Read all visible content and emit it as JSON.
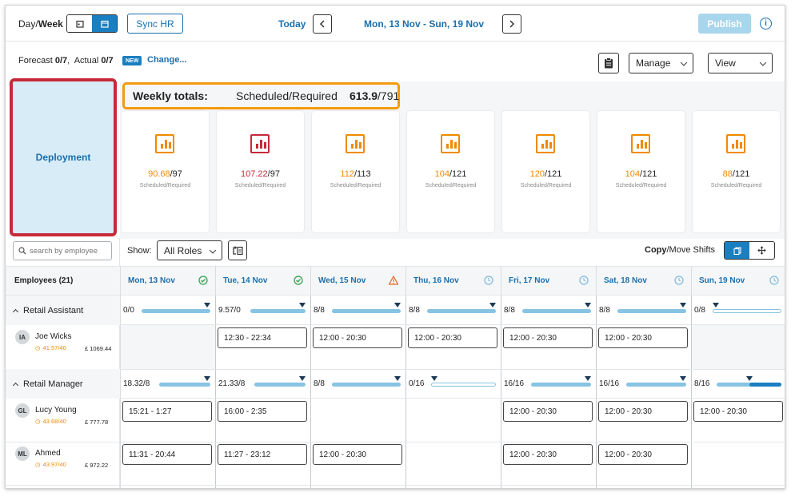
{
  "toolbar": {
    "mode_prefix": "Day/",
    "mode_bold": "Week",
    "sync_label": "Sync HR",
    "today_label": "Today",
    "date_range": "Mon, 13 Nov - Sun, 19 Nov",
    "publish_label": "Publish",
    "colors": {
      "accent": "#1a6fae",
      "publish_bg": "#a8d6ec"
    }
  },
  "forecast": {
    "forecast_label": "Forecast",
    "forecast_value": "0/7",
    "actual_label": "Actual",
    "actual_value": "0/7",
    "new_badge": "NEW",
    "change_link": "Change...",
    "manage_label": "Manage",
    "view_label": "View"
  },
  "deployment": {
    "label": "Deployment",
    "highlight_color": "#c62a3a"
  },
  "weekly_totals": {
    "label": "Weekly totals:",
    "metric_label": "Scheduled/Required",
    "scheduled": "613.9",
    "required": "/791",
    "highlight_color": "#f39a0f"
  },
  "day_cards": [
    {
      "scheduled": "90.68",
      "required": "/97",
      "sub": "Scheduled/Required",
      "color": "#f08a00"
    },
    {
      "scheduled": "107.22",
      "required": "/97",
      "sub": "Scheduled/Required",
      "color": "#c62a3a"
    },
    {
      "scheduled": "112",
      "required": "/113",
      "sub": "Scheduled/Required",
      "color": "#f08a00"
    },
    {
      "scheduled": "104",
      "required": "/121",
      "sub": "Scheduled/Required",
      "color": "#f08a00"
    },
    {
      "scheduled": "120",
      "required": "/121",
      "sub": "Scheduled/Required",
      "color": "#f08a00"
    },
    {
      "scheduled": "104",
      "required": "/121",
      "sub": "Scheduled/Required",
      "color": "#f08a00"
    },
    {
      "scheduled": "88",
      "required": "/121",
      "sub": "Scheduled/Required",
      "color": "#f08a00"
    }
  ],
  "filters": {
    "search_placeholder": "search by employee",
    "show_label": "Show:",
    "roles_value": "All Roles",
    "copy_bold": "Copy",
    "move_label": "/Move Shifts"
  },
  "employees_header": "Employees (21)",
  "days": [
    {
      "label": "Mon, 13 Nov",
      "status": "check"
    },
    {
      "label": "Tue, 14 Nov",
      "status": "check"
    },
    {
      "label": "Wed, 15 Nov",
      "status": "warning"
    },
    {
      "label": "Thu, 16 Nov",
      "status": "clock"
    },
    {
      "label": "Fri, 17 Nov",
      "status": "clock"
    },
    {
      "label": "Sat, 18 Nov",
      "status": "clock"
    },
    {
      "label": "Sun, 19 Nov",
      "status": "clock"
    }
  ],
  "roles": [
    {
      "name": "Retail Assistant",
      "coverage": [
        {
          "text": "0/0",
          "fill": 1.0
        },
        {
          "text": "9.57/0",
          "fill": 1.0
        },
        {
          "text": "8/8",
          "fill": 1.0
        },
        {
          "text": "8/8",
          "fill": 1.0
        },
        {
          "text": "8/8",
          "fill": 1.0
        },
        {
          "text": "8/8",
          "fill": 1.0
        },
        {
          "text": "0/8",
          "fill": 0.0
        }
      ],
      "employees": [
        {
          "initials": "IA",
          "name": "Joe Wicks",
          "hours": "41.57/40",
          "cost": "£ 1069.44",
          "shifts": [
            "",
            "12:30 - 22:34",
            "12:00 - 20:30",
            "12:00 - 20:30",
            "12:00 - 20:30",
            "12:00 - 20:30",
            ""
          ]
        }
      ]
    },
    {
      "name": "Retail Manager",
      "coverage": [
        {
          "text": "18.32/8",
          "fill": 1.0
        },
        {
          "text": "21.33/8",
          "fill": 1.0
        },
        {
          "text": "8/8",
          "fill": 1.0
        },
        {
          "text": "0/16",
          "fill": 0.0
        },
        {
          "text": "16/16",
          "fill": 1.0
        },
        {
          "text": "16/16",
          "fill": 1.0
        },
        {
          "text": "8/16",
          "fill": 0.5
        }
      ],
      "employees": [
        {
          "initials": "GL",
          "name": "Lucy Young",
          "hours": "43.68/40",
          "cost": "£ 777.78",
          "shifts": [
            "15:21 - 1:27",
            "16:00 - 2:35",
            "",
            "",
            "12:00 - 20:30",
            "12:00 - 20:30",
            "12:00 - 20:30"
          ]
        },
        {
          "initials": "ML",
          "name": "Ahmed",
          "hours": "43.97/40",
          "cost": "£ 972.22",
          "shifts": [
            "11:31 - 20:44",
            "11:27 - 23:12",
            "12:00 - 20:30",
            "",
            "12:00 - 20:30",
            "12:00 - 20:30",
            ""
          ]
        }
      ]
    }
  ]
}
